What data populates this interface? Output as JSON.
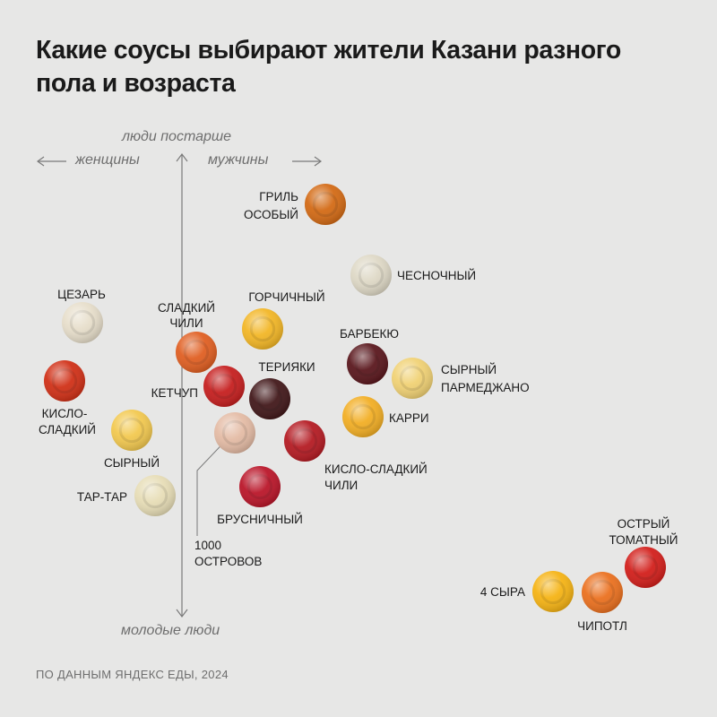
{
  "title": "Какие соусы выбирают жители Казани разного пола и возраста",
  "axes": {
    "top": "люди постарше",
    "bottom": "молодые люди",
    "left": "женщины",
    "right": "мужчины"
  },
  "source": "ПО ДАННЫМ ЯНДЕКС ЕДЫ, 2024",
  "colors": {
    "background": "#e7e7e6",
    "axis": "#7a7a7a"
  },
  "chart_data": {
    "type": "scatter",
    "x_axis": {
      "negative": "женщины",
      "positive": "мужчины"
    },
    "y_axis": {
      "negative": "молодые люди",
      "positive": "люди постарше"
    },
    "points": [
      {
        "label": "ГРИЛЬ ОСОБЫЙ",
        "color": "#d2660e",
        "x": null,
        "y": null
      },
      {
        "label": "ЧЕСНОЧНЫЙ",
        "color": "#ddd7c4",
        "x": null,
        "y": null
      },
      {
        "label": "ЦЕЗАРЬ",
        "color": "#e6ddc9",
        "x": null,
        "y": null
      },
      {
        "label": "СЛАДКИЙ ЧИЛИ",
        "color": "#df5a1b",
        "x": null,
        "y": null
      },
      {
        "label": "ГОРЧИЧНЫЙ",
        "color": "#f2b41f",
        "x": null,
        "y": null
      },
      {
        "label": "БАРБЕКЮ",
        "color": "#551016",
        "x": null,
        "y": null
      },
      {
        "label": "СЫРНЫЙ ПАРМЕДЖАНО",
        "color": "#f0d070",
        "x": null,
        "y": null
      },
      {
        "label": "ТЕРИЯКИ",
        "color": "#3c1113",
        "x": null,
        "y": null
      },
      {
        "label": "КЕТЧУП",
        "color": "#c41818",
        "x": null,
        "y": null
      },
      {
        "label": "КИСЛО-СЛАДКИЙ",
        "color": "#cf2a10",
        "x": null,
        "y": null
      },
      {
        "label": "КАРРИ",
        "color": "#f2ac1e",
        "x": null,
        "y": null
      },
      {
        "label": "СЫРНЫЙ",
        "color": "#f2c74a",
        "x": null,
        "y": null
      },
      {
        "label": "1000 ОСТРОВОВ",
        "color": "#e3b9a2",
        "x": null,
        "y": null
      },
      {
        "label": "КИСЛО-СЛАДКИЙ ЧИЛИ",
        "color": "#b2141c",
        "x": null,
        "y": null
      },
      {
        "label": "ТАР-ТАР",
        "color": "#e6dcb4",
        "x": null,
        "y": null
      },
      {
        "label": "БРУСНИЧНЫЙ",
        "color": "#b80f23",
        "x": null,
        "y": null
      },
      {
        "label": "ОСТРЫЙ ТОМАТНЫЙ",
        "color": "#d11814",
        "x": null,
        "y": null
      },
      {
        "label": "4 СЫРА",
        "color": "#f5b10d",
        "x": null,
        "y": null
      },
      {
        "label": "ЧИПОТЛ",
        "color": "#ea6c18",
        "x": null,
        "y": null
      }
    ]
  }
}
